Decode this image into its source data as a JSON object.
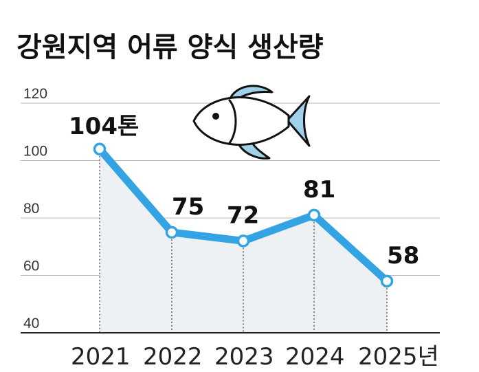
{
  "chart_data": {
    "type": "line",
    "title": "강원지역 어류 양식 생산량",
    "xlabel": "",
    "ylabel": "",
    "categories": [
      "2021",
      "2022",
      "2023",
      "2024",
      "2025년"
    ],
    "series": [
      {
        "values": [
          104,
          75,
          72,
          81,
          58
        ]
      }
    ],
    "data_labels": [
      "104톤",
      "75",
      "72",
      "81",
      "58"
    ],
    "yticks": [
      "40",
      "60",
      "80",
      "100",
      "120"
    ],
    "ylim": [
      40,
      120
    ],
    "grid": true,
    "legend": "none",
    "colors": {
      "line": "#33A3E3",
      "marker_fill": "#ffffff",
      "area": "#EEF1F4",
      "grid": "#b8b8b8",
      "fish_body": "#ffffff",
      "fish_fin": "#9FD1EB",
      "fish_outline": "#111111"
    },
    "decoration": "fish-icon"
  }
}
